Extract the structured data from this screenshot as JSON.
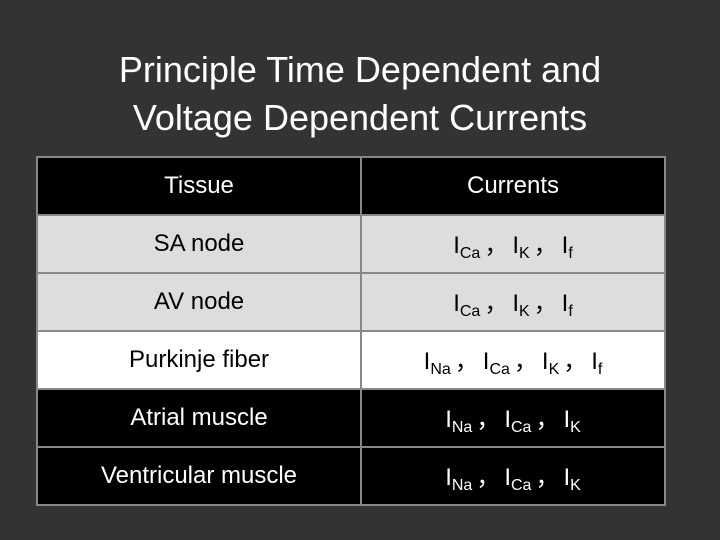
{
  "slide": {
    "title": {
      "line1": "Principle Time Dependent and",
      "line2": "Voltage Dependent Currents"
    },
    "table": {
      "header": [
        "Tissue",
        "Currents"
      ],
      "separator": "，",
      "rows": [
        {
          "tissue": "SA node",
          "currents": [
            {
              "symbol": "I",
              "sub": "Ca"
            },
            {
              "symbol": "I",
              "sub": "K"
            },
            {
              "symbol": "I",
              "sub": "f"
            }
          ]
        },
        {
          "tissue": "AV node",
          "currents": [
            {
              "symbol": "I",
              "sub": "Ca"
            },
            {
              "symbol": "I",
              "sub": "K"
            },
            {
              "symbol": "I",
              "sub": "f"
            }
          ]
        },
        {
          "tissue": "Purkinje fiber",
          "currents": [
            {
              "symbol": "I",
              "sub": "Na"
            },
            {
              "symbol": "I",
              "sub": "Ca"
            },
            {
              "symbol": "I",
              "sub": "K"
            },
            {
              "symbol": "I",
              "sub": "f"
            }
          ]
        },
        {
          "tissue": "Atrial muscle",
          "currents": [
            {
              "symbol": "I",
              "sub": "Na"
            },
            {
              "symbol": "I",
              "sub": "Ca"
            },
            {
              "symbol": "I",
              "sub": "K"
            }
          ]
        },
        {
          "tissue": "Ventricular muscle",
          "currents": [
            {
              "symbol": "I",
              "sub": "Na"
            },
            {
              "symbol": "I",
              "sub": "Ca"
            },
            {
              "symbol": "I",
              "sub": "K"
            }
          ]
        }
      ]
    }
  }
}
